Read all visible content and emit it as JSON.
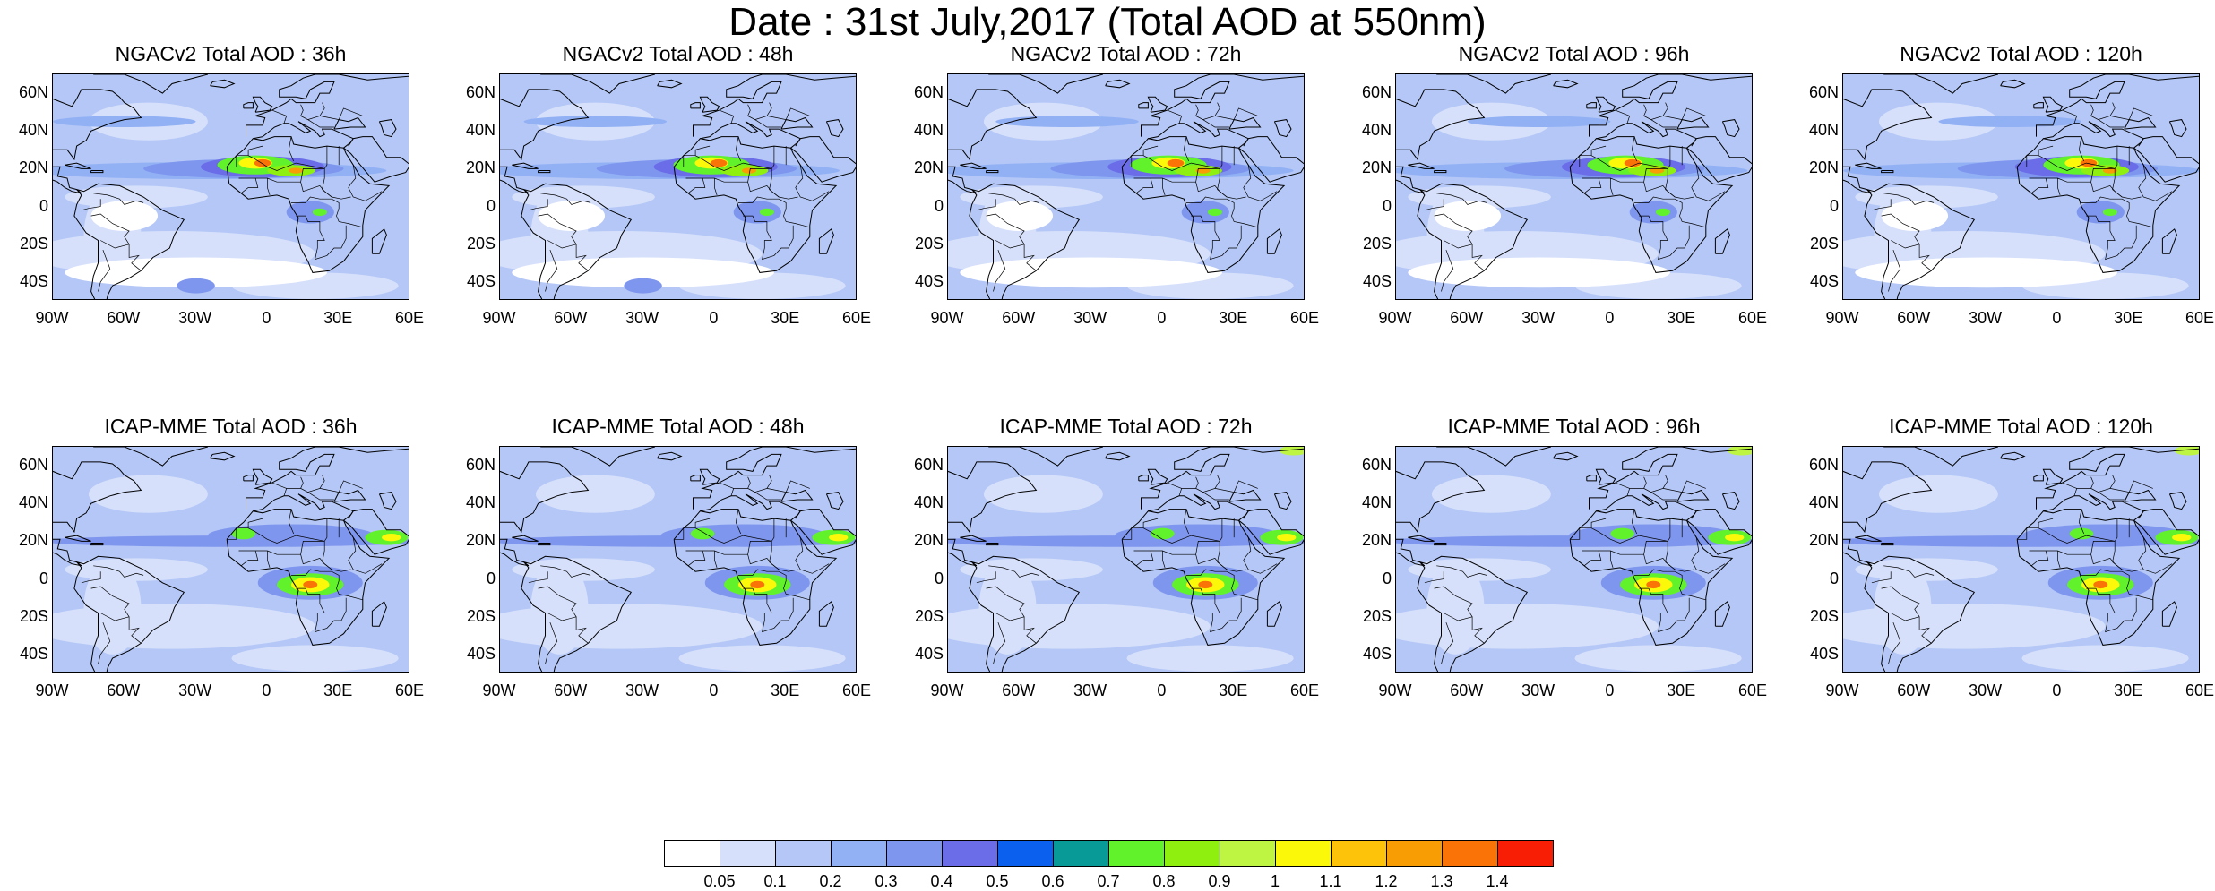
{
  "title": "Date : 31st July,2017 (Total AOD at 550nm)",
  "panels": [
    {
      "title": "NGACv2 Total AOD : 36h",
      "model": "ngac",
      "hour": 36
    },
    {
      "title": "NGACv2 Total AOD : 48h",
      "model": "ngac",
      "hour": 48
    },
    {
      "title": "NGACv2 Total AOD : 72h",
      "model": "ngac",
      "hour": 72
    },
    {
      "title": "NGACv2 Total AOD : 96h",
      "model": "ngac",
      "hour": 96
    },
    {
      "title": "NGACv2 Total AOD : 120h",
      "model": "ngac",
      "hour": 120
    },
    {
      "title": "ICAP-MME Total AOD : 36h",
      "model": "icap",
      "hour": 36
    },
    {
      "title": "ICAP-MME Total AOD : 48h",
      "model": "icap",
      "hour": 48
    },
    {
      "title": "ICAP-MME Total AOD : 72h",
      "model": "icap",
      "hour": 72
    },
    {
      "title": "ICAP-MME Total AOD : 96h",
      "model": "icap",
      "hour": 96
    },
    {
      "title": "ICAP-MME Total AOD : 120h",
      "model": "icap",
      "hour": 120
    }
  ],
  "lat_ticks": [
    "60N",
    "40N",
    "20N",
    "0",
    "20S",
    "40S"
  ],
  "lon_ticks": [
    "90W",
    "60W",
    "30W",
    "0",
    "30E",
    "60E"
  ],
  "lat_tick_values": [
    60,
    40,
    20,
    0,
    -20,
    -40
  ],
  "lon_tick_values": [
    -90,
    -60,
    -30,
    0,
    30,
    60
  ],
  "map_extent": {
    "lon": [
      -90,
      60
    ],
    "lat": [
      -50,
      70
    ]
  },
  "colorbar": {
    "labels": [
      "0.05",
      "0.1",
      "0.2",
      "0.3",
      "0.4",
      "0.5",
      "0.6",
      "0.7",
      "0.8",
      "0.9",
      "1",
      "1.1",
      "1.2",
      "1.3",
      "1.4"
    ],
    "colors": [
      "#ffffff",
      "#d6e0fb",
      "#b4c7f6",
      "#92b1f5",
      "#7f96ee",
      "#6a6ce8",
      "#0b61ee",
      "#079a97",
      "#62f22b",
      "#8ff00f",
      "#bdf542",
      "#fbf909",
      "#fcc30a",
      "#f99d05",
      "#f97306",
      "#f81e05"
    ]
  }
}
